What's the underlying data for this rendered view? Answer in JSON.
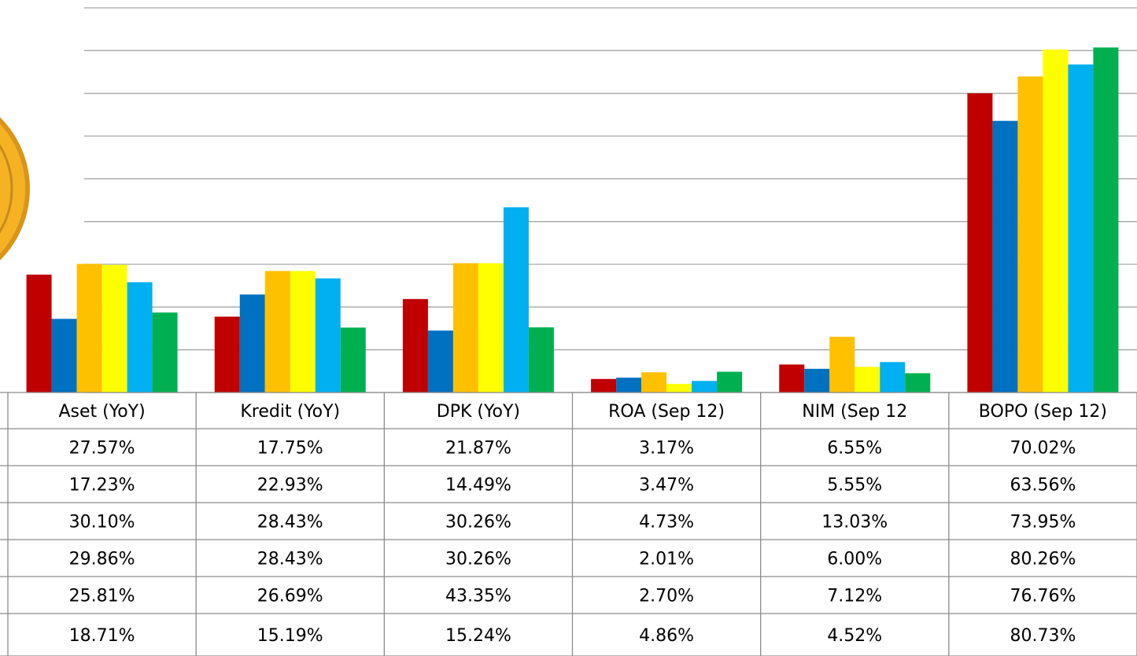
{
  "chart_data": {
    "type": "bar",
    "categories": [
      "Aset (YoY)",
      "Kredit (YoY)",
      "DPK (YoY)",
      "ROA (Sep 12)",
      "NIM (Sep 12",
      "BOPO (Sep 12)"
    ],
    "series": [
      {
        "color": "#c00000",
        "values": [
          27.57,
          17.75,
          21.87,
          3.17,
          6.55,
          70.02
        ],
        "value_labels": [
          "27.57%",
          "17.75%",
          "21.87%",
          "3.17%",
          "6.55%",
          "70.02%"
        ]
      },
      {
        "color": "#0070c0",
        "values": [
          17.23,
          22.93,
          14.49,
          3.47,
          5.55,
          63.56
        ],
        "value_labels": [
          "17.23%",
          "22.93%",
          "14.49%",
          "3.47%",
          "5.55%",
          "63.56%"
        ]
      },
      {
        "color": "#ffc000",
        "values": [
          30.1,
          28.43,
          30.26,
          4.73,
          13.03,
          73.95
        ],
        "value_labels": [
          "30.10%",
          "28.43%",
          "30.26%",
          "4.73%",
          "13.03%",
          "73.95%"
        ]
      },
      {
        "color": "#ffff00",
        "values": [
          29.86,
          28.43,
          30.26,
          2.01,
          6.0,
          80.26
        ],
        "value_labels": [
          "29.86%",
          "28.43%",
          "30.26%",
          "2.01%",
          "6.00%",
          "80.26%"
        ]
      },
      {
        "color": "#00b0f0",
        "values": [
          25.81,
          26.69,
          43.35,
          2.7,
          7.12,
          76.76
        ],
        "value_labels": [
          "25.81%",
          "26.69%",
          "43.35%",
          "2.70%",
          "7.12%",
          "76.76%"
        ]
      },
      {
        "color": "#00b050",
        "values": [
          18.71,
          15.19,
          15.24,
          4.86,
          4.52,
          80.73
        ],
        "value_labels": [
          "18.71%",
          "15.19%",
          "15.24%",
          "4.86%",
          "4.52%",
          "80.73%"
        ]
      }
    ],
    "ylim": [
      0,
      90
    ],
    "yticks": [
      0,
      10,
      20,
      30,
      40,
      50,
      60,
      70,
      80,
      90
    ],
    "grid": true
  }
}
